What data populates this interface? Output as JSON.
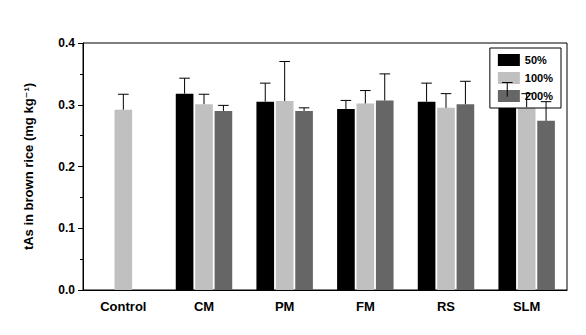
{
  "chart_data": {
    "type": "bar",
    "y_label": "tAs in brown rice (mg kg⁻¹)",
    "categories": [
      "Control",
      "CM",
      "PM",
      "FM",
      "RS",
      "SLM"
    ],
    "series": [
      {
        "name": "50%",
        "color": "#000000",
        "values": [
          null,
          0.318,
          0.305,
          0.293,
          0.305,
          0.313
        ],
        "errors": [
          null,
          0.025,
          0.03,
          0.014,
          0.03,
          0.023
        ]
      },
      {
        "name": "100%",
        "color": "#c0c0c0",
        "values": [
          0.292,
          0.301,
          0.306,
          0.302,
          0.295,
          0.296
        ],
        "errors": [
          0.025,
          0.016,
          0.064,
          0.021,
          0.023,
          0.022
        ]
      },
      {
        "name": "200%",
        "color": "#666666",
        "values": [
          null,
          0.29,
          0.29,
          0.307,
          0.301,
          0.274
        ],
        "errors": [
          null,
          0.009,
          0.005,
          0.043,
          0.037,
          0.031
        ]
      }
    ],
    "ylim": [
      0,
      0.4
    ],
    "yticks": [
      {
        "value": 0,
        "label": "0.0"
      },
      {
        "value": 0.1,
        "label": "0.1"
      },
      {
        "value": 0.2,
        "label": "0.2"
      },
      {
        "value": 0.3,
        "label": "0.3"
      },
      {
        "value": 0.4,
        "label": "0.4"
      }
    ],
    "grid": false,
    "legend": "upper right"
  }
}
